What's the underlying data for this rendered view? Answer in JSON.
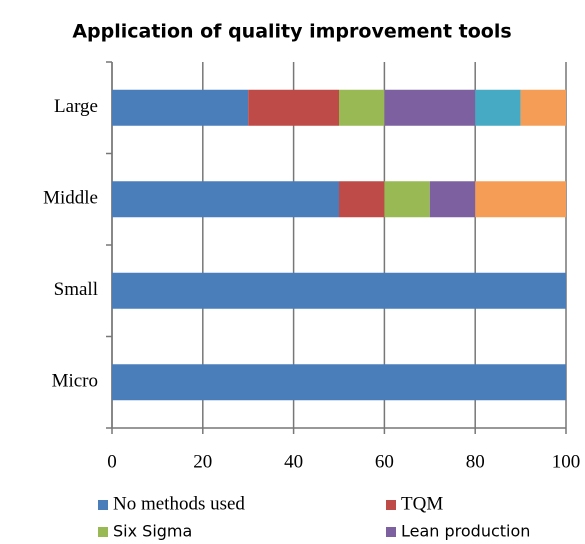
{
  "chart_data": {
    "type": "stacked-barh",
    "title": "Application of quality improvement tools",
    "categories": [
      "Large",
      "Middle",
      "Small",
      "Micro"
    ],
    "series": [
      {
        "name": "No methods used",
        "color": "#4a7ebb",
        "values": [
          30,
          50,
          100,
          100
        ]
      },
      {
        "name": "TQM",
        "color": "#be4b48",
        "values": [
          20,
          10,
          0,
          0
        ]
      },
      {
        "name": "Six Sigma",
        "color": "#98b954",
        "values": [
          10,
          10,
          0,
          0
        ]
      },
      {
        "name": "Lean production",
        "color": "#7d60a0",
        "values": [
          20,
          10,
          0,
          0
        ]
      },
      {
        "color": "#46aac5",
        "values": [
          10,
          0,
          0,
          0
        ]
      },
      {
        "color": "#f59d56",
        "values": [
          10,
          20,
          0,
          0
        ]
      }
    ],
    "xlim": [
      0,
      100
    ],
    "xticks": [
      0,
      20,
      40,
      60,
      80,
      100
    ],
    "grid": true
  }
}
